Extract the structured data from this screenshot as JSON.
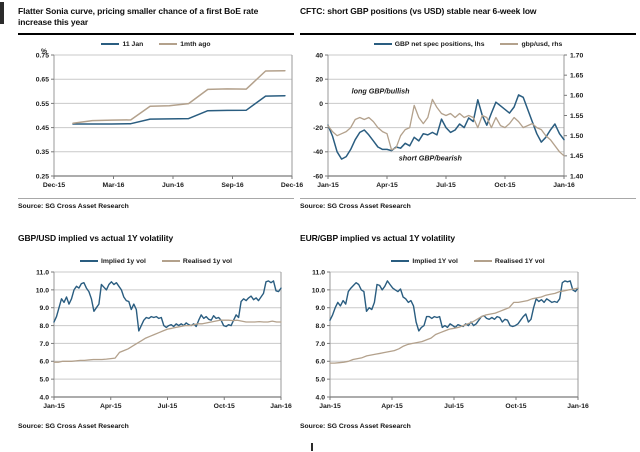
{
  "colors": {
    "blue": "#2a5d80",
    "tan": "#b3a18c",
    "grid": "#c9c9c9",
    "axis": "#9a9a9a",
    "axis_dark": "#7a7a7a",
    "text": "#1a1a1a"
  },
  "chart_data": [
    {
      "type": "line",
      "title": "Flatter Sonia curve, pricing smaller chance of a first BoE rate increase this year",
      "source": "Source: SG Cross Asset Research",
      "x_ticklabels": [
        "Dec-15",
        "Mar-16",
        "Jun-16",
        "Sep-16",
        "Dec-16"
      ],
      "yaxis": {
        "label": "%",
        "min": 0.25,
        "max": 0.75,
        "ticks": [
          "0.75",
          "0.65",
          "0.55",
          "0.45",
          "0.35",
          "0.25"
        ]
      },
      "legend_position": "top",
      "grid": true,
      "series": [
        {
          "name": "11 Jan",
          "color": "#2a5d80",
          "width": 1.5,
          "xstart": 0.08,
          "xend": 0.97,
          "values": [
            0.465,
            0.465,
            0.465,
            0.466,
            0.485,
            0.486,
            0.487,
            0.52,
            0.521,
            0.522,
            0.58,
            0.582
          ]
        },
        {
          "name": "1mth ago",
          "color": "#b3a18c",
          "width": 1.5,
          "xstart": 0.08,
          "xend": 0.97,
          "values": [
            0.468,
            0.479,
            0.481,
            0.482,
            0.538,
            0.54,
            0.549,
            0.608,
            0.61,
            0.609,
            0.684,
            0.685
          ]
        }
      ]
    },
    {
      "type": "line",
      "title": "CFTC: short GBP positions (vs USD) stable near 6-week low",
      "source": "Source: SG Cross Asset Research",
      "x_ticklabels": [
        "Jan-15",
        "Apr-15",
        "Jul-15",
        "Oct-15",
        "Jan-16"
      ],
      "yaxis": {
        "min": -60,
        "max": 40,
        "ticks": [
          "40",
          "20",
          "0",
          "-20",
          "-40",
          "-60"
        ]
      },
      "y2axis": {
        "min": 1.4,
        "max": 1.7,
        "ticks": [
          "1.70",
          "1.65",
          "1.60",
          "1.55",
          "1.50",
          "1.45",
          "1.40"
        ]
      },
      "legend_position": "top",
      "grid": true,
      "annotations": [
        {
          "text": "long GBP/bullish",
          "x": 0.1,
          "y": 8
        },
        {
          "text": "short GBP/bearish",
          "x": 0.3,
          "y": -47
        }
      ],
      "series": [
        {
          "name": "GBP net spec positions, lhs",
          "color": "#2a5d80",
          "width": 1.5,
          "axis": "y",
          "values": [
            -18,
            -27,
            -40,
            -46,
            -44,
            -38,
            -30,
            -24,
            -22,
            -26,
            -31,
            -36,
            -38,
            -38,
            -39,
            -36,
            -37,
            -33,
            -35,
            -28,
            -31,
            -25,
            -26,
            -24,
            -26,
            -13,
            -20,
            -24,
            -22,
            -17,
            -20,
            -12,
            -15,
            3,
            -10,
            -18,
            -8,
            1,
            -2,
            -5,
            -8,
            -3,
            7,
            5,
            -5,
            -15,
            -25,
            -32,
            -28,
            -22,
            -17,
            -25,
            -30
          ]
        },
        {
          "name": "gbp/usd, rhs",
          "color": "#b3a18c",
          "width": 1.3,
          "axis": "y2",
          "values": [
            1.525,
            1.51,
            1.5,
            1.505,
            1.51,
            1.52,
            1.54,
            1.545,
            1.54,
            1.545,
            1.535,
            1.52,
            1.51,
            1.505,
            1.465,
            1.47,
            1.5,
            1.515,
            1.52,
            1.575,
            1.545,
            1.53,
            1.545,
            1.59,
            1.57,
            1.555,
            1.55,
            1.555,
            1.545,
            1.555,
            1.545,
            1.55,
            1.545,
            1.52,
            1.55,
            1.545,
            1.52,
            1.545,
            1.525,
            1.52,
            1.53,
            1.545,
            1.535,
            1.52,
            1.525,
            1.53,
            1.52,
            1.515,
            1.5,
            1.49,
            1.475,
            1.46,
            1.45
          ]
        }
      ]
    },
    {
      "type": "line",
      "title": "GBP/USD implied vs actual 1Y volatility",
      "source": "Source: SG Cross Asset Research",
      "x_ticklabels": [
        "Jan-15",
        "Apr-15",
        "Jul-15",
        "Oct-15",
        "Jan-16"
      ],
      "yaxis": {
        "min": 4,
        "max": 11,
        "ticks": [
          "11.0",
          "10.0",
          "9.0",
          "8.0",
          "7.0",
          "6.0",
          "5.0",
          "4.0"
        ]
      },
      "legend_position": "top",
      "grid": true,
      "series": [
        {
          "name": "Implied 1y vol",
          "color": "#2a5d80",
          "width": 1.4,
          "values": [
            8.2,
            8.5,
            9.0,
            9.5,
            9.3,
            9.6,
            9.2,
            9.5,
            10.0,
            10.2,
            10.1,
            10.35,
            10.4,
            10.1,
            9.9,
            9.5,
            8.8,
            9.0,
            9.2,
            10.3,
            10.15,
            10.0,
            10.3,
            10.45,
            10.3,
            10.4,
            10.2,
            10.0,
            9.6,
            9.4,
            9.35,
            8.9,
            9.2,
            8.9,
            7.7,
            8.0,
            8.3,
            8.45,
            8.4,
            8.5,
            8.45,
            8.5,
            8.4,
            8.45,
            8.0,
            7.9,
            8.0,
            8.05,
            7.95,
            8.1,
            8.0,
            8.1,
            8.0,
            8.15,
            8.05,
            8.0,
            8.1,
            7.95,
            8.3,
            8.6,
            8.4,
            8.5,
            8.35,
            8.3,
            8.55,
            8.4,
            8.45,
            8.3,
            8.0,
            7.95,
            8.05,
            8.0,
            8.3,
            8.6,
            8.45,
            9.35,
            9.5,
            9.4,
            9.55,
            9.65,
            9.45,
            9.55,
            9.4,
            9.6,
            9.8,
            10.45,
            10.5,
            10.4,
            10.5,
            9.95,
            9.9,
            10.1
          ]
        },
        {
          "name": "Realised 1y vol",
          "color": "#b3a18c",
          "width": 1.3,
          "values": [
            5.95,
            5.95,
            6.0,
            6.0,
            6.0,
            6.02,
            6.05,
            6.05,
            6.08,
            6.1,
            6.1,
            6.1,
            6.12,
            6.15,
            6.18,
            6.5,
            6.6,
            6.7,
            6.85,
            7.0,
            7.15,
            7.3,
            7.4,
            7.5,
            7.6,
            7.7,
            7.8,
            7.85,
            7.9,
            7.95,
            8.0,
            8.0,
            8.05,
            8.1,
            8.1,
            8.15,
            8.2,
            8.25,
            8.3,
            8.3,
            8.3,
            8.28,
            8.3,
            8.25,
            8.2,
            8.2,
            8.2,
            8.22,
            8.2,
            8.2,
            8.25,
            8.2,
            8.2
          ]
        }
      ]
    },
    {
      "type": "line",
      "title": "EUR/GBP implied vs actual 1Y volatility",
      "source": "Source: SG Cross Asset Research",
      "x_ticklabels": [
        "Jan-15",
        "Apr-15",
        "Jul-15",
        "Oct-15",
        "Jan-16"
      ],
      "yaxis": {
        "min": 4,
        "max": 11,
        "ticks": [
          "11.0",
          "10.0",
          "9.0",
          "8.0",
          "7.0",
          "6.0",
          "5.0",
          "4.0"
        ]
      },
      "legend_position": "top",
      "grid": true,
      "series": [
        {
          "name": "Implied 1Y vol",
          "color": "#2a5d80",
          "width": 1.4,
          "values": [
            8.3,
            8.6,
            9.0,
            9.3,
            9.1,
            9.4,
            9.2,
            9.9,
            10.1,
            10.25,
            10.4,
            10.3,
            10.0,
            9.9,
            8.8,
            9.0,
            8.9,
            9.3,
            10.3,
            10.25,
            10.0,
            10.2,
            10.5,
            10.3,
            10.1,
            10.0,
            9.9,
            10.05,
            9.6,
            9.5,
            9.3,
            9.4,
            9.1,
            8.2,
            7.7,
            7.9,
            8.0,
            8.5,
            8.5,
            8.4,
            8.5,
            8.45,
            8.5,
            7.9,
            8.0,
            7.9,
            8.1,
            8.0,
            7.9,
            8.05,
            8.0,
            7.95,
            8.1,
            8.0,
            8.2,
            8.0,
            8.1,
            8.3,
            8.5,
            8.55,
            8.4,
            8.35,
            8.45,
            8.35,
            8.5,
            8.45,
            8.2,
            8.35,
            8.3,
            8.0,
            7.95,
            8.0,
            8.1,
            8.3,
            8.5,
            8.65,
            8.2,
            8.35,
            9.0,
            9.5,
            9.35,
            9.45,
            9.3,
            9.5,
            9.4,
            9.3,
            9.35,
            9.3,
            9.5,
            10.4,
            10.5,
            10.45,
            10.5,
            10.0,
            9.9,
            10.1
          ]
        },
        {
          "name": "Realised 1Y vol",
          "color": "#b3a18c",
          "width": 1.3,
          "values": [
            5.9,
            5.9,
            5.92,
            5.95,
            6.0,
            6.1,
            6.15,
            6.2,
            6.3,
            6.35,
            6.4,
            6.45,
            6.5,
            6.55,
            6.6,
            6.7,
            6.85,
            6.95,
            7.0,
            7.05,
            7.1,
            7.2,
            7.3,
            7.5,
            7.6,
            7.7,
            7.8,
            7.85,
            7.9,
            8.0,
            8.1,
            8.2,
            8.35,
            8.5,
            8.6,
            8.65,
            8.7,
            8.8,
            8.9,
            9.0,
            9.3,
            9.3,
            9.35,
            9.4,
            9.5,
            9.55,
            9.6,
            9.7,
            9.75,
            9.8,
            9.9,
            9.95,
            10.0,
            10.05,
            10.1
          ]
        }
      ]
    }
  ]
}
